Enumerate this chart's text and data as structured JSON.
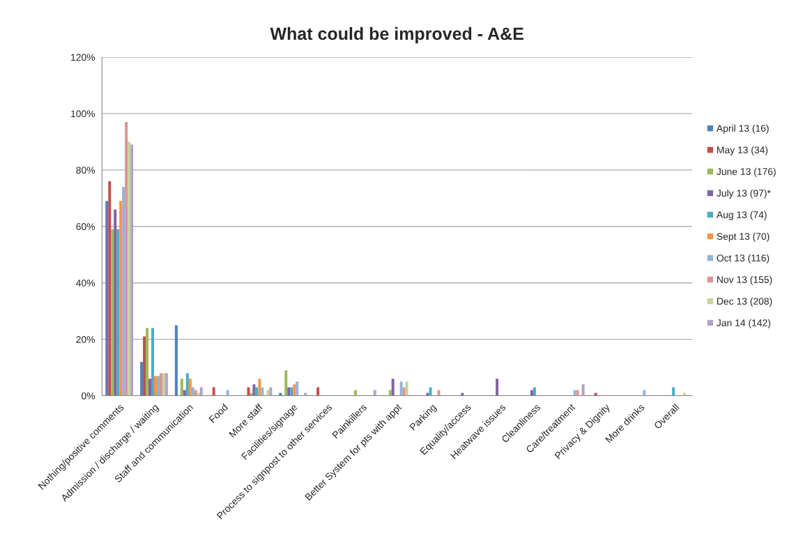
{
  "chart_data": {
    "type": "bar",
    "title": "What could be improved - A&E",
    "categories": [
      "Nothing/positive comments",
      "Admission / discharge / waiting",
      "Staff and communication",
      "Food",
      "More staff",
      "Facilities/signage",
      "Process to signpost to other services",
      "Painkillers",
      "Better System for pts with appt",
      "Parking",
      "Equality/access",
      "Heatwave issues",
      "Cleanliness",
      "Care/treatment",
      "Privacy & Dignity",
      "More drinks",
      "Overall"
    ],
    "series": [
      {
        "name": "April 13 (16)",
        "color": "#4f81bd",
        "values": [
          69,
          12,
          25,
          0,
          0,
          1,
          0,
          0,
          0,
          0,
          0,
          0,
          0,
          0,
          0,
          0,
          0
        ]
      },
      {
        "name": "May 13 (34)",
        "color": "#c0504d",
        "values": [
          76,
          21,
          0,
          3,
          3,
          0,
          3,
          0,
          0,
          0,
          0,
          0,
          0,
          0,
          1,
          0,
          0
        ]
      },
      {
        "name": "June 13 (176)",
        "color": "#9bbb59",
        "values": [
          59,
          24,
          6,
          0,
          1,
          9,
          0,
          2,
          2,
          0,
          0,
          0,
          0,
          0,
          0,
          0,
          0
        ]
      },
      {
        "name": "July 13 (97)*",
        "color": "#8064a2",
        "values": [
          66,
          6,
          2,
          0,
          4,
          3,
          0,
          0,
          6,
          1,
          1,
          6,
          2,
          0,
          0,
          0,
          0
        ]
      },
      {
        "name": "Aug 13 (74)",
        "color": "#4bacc6",
        "values": [
          59,
          24,
          8,
          0,
          3,
          3,
          0,
          0,
          0,
          3,
          0,
          0,
          3,
          0,
          0,
          0,
          3
        ]
      },
      {
        "name": "Sept 13 (70)",
        "color": "#f79646",
        "values": [
          69,
          7,
          6,
          0,
          6,
          4,
          0,
          0,
          0,
          0,
          0,
          0,
          0,
          0,
          0,
          0,
          0
        ]
      },
      {
        "name": "Oct 13 (116)",
        "color": "#95b3d7",
        "values": [
          74,
          7,
          3,
          2,
          3,
          5,
          0,
          0,
          5,
          0,
          0,
          0,
          0,
          2,
          0,
          2,
          0
        ]
      },
      {
        "name": "Nov 13 (155)",
        "color": "#d99694",
        "values": [
          97,
          8,
          2,
          0,
          0,
          0,
          0,
          0,
          3,
          2,
          0,
          0,
          0,
          2,
          0,
          0,
          0
        ]
      },
      {
        "name": "Dec 13 (208)",
        "color": "#c3d69b",
        "values": [
          90,
          8,
          1,
          0,
          2,
          0,
          0,
          0,
          5,
          0,
          0,
          0,
          0,
          0,
          0,
          0,
          1
        ]
      },
      {
        "name": "Jan 14 (142)",
        "color": "#b2a2c7",
        "values": [
          89,
          8,
          3,
          0,
          3,
          1,
          0,
          2,
          0,
          0,
          0,
          0,
          0,
          4,
          0,
          0,
          0
        ]
      }
    ],
    "ylim": [
      0,
      120
    ],
    "yticks": [
      {
        "value": 0,
        "label": "0%"
      },
      {
        "value": 20,
        "label": "20%"
      },
      {
        "value": 40,
        "label": "40%"
      },
      {
        "value": 60,
        "label": "60%"
      },
      {
        "value": 80,
        "label": "80%"
      },
      {
        "value": 100,
        "label": "100%"
      },
      {
        "value": 120,
        "label": "120%"
      }
    ],
    "grid": "y",
    "legend": "right"
  }
}
